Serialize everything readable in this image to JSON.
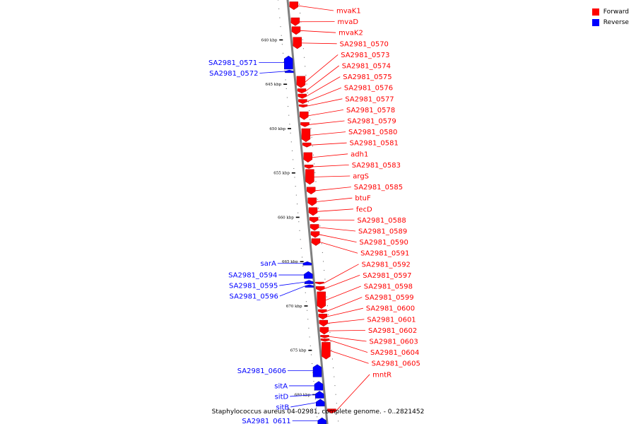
{
  "colors": {
    "forward": "#ff0000",
    "reverse": "#0000ff",
    "backbone": "#808080",
    "tick": "#000000"
  },
  "legend": {
    "forward_label": "Forward",
    "reverse_label": "Reverse"
  },
  "caption": "Staphylococcus aureus 04-02981, complete genome. - 0..2821452",
  "ticks": [
    {
      "kbp": 640,
      "label": "640 kbp"
    },
    {
      "kbp": 645,
      "label": "645 kbp"
    },
    {
      "kbp": 650,
      "label": "650 kbp"
    },
    {
      "kbp": 655,
      "label": "655 kbp"
    },
    {
      "kbp": 660,
      "label": "660 kbp"
    },
    {
      "kbp": 665,
      "label": "665 kbp"
    },
    {
      "kbp": 670,
      "label": "670 kbp"
    },
    {
      "kbp": 675,
      "label": "675 kbp"
    },
    {
      "kbp": 680,
      "label": "680 kbp"
    }
  ],
  "genes": [
    {
      "name": "mvaK1",
      "strand": "forward",
      "start": 635.7,
      "end": 636.6
    },
    {
      "name": "mvaD",
      "strand": "forward",
      "start": 637.5,
      "end": 638.4
    },
    {
      "name": "mvaK2",
      "strand": "forward",
      "start": 638.5,
      "end": 639.4
    },
    {
      "name": "SA2981_0570",
      "strand": "forward",
      "start": 639.7,
      "end": 641.0
    },
    {
      "name": "SA2981_0571",
      "strand": "reverse",
      "start": 641.8,
      "end": 643.3
    },
    {
      "name": "SA2981_0572",
      "strand": "reverse",
      "start": 643.4,
      "end": 643.7
    },
    {
      "name": "SA2981_0573",
      "strand": "forward",
      "start": 644.1,
      "end": 645.4
    },
    {
      "name": "SA2981_0574",
      "strand": "forward",
      "start": 645.5,
      "end": 646.0
    },
    {
      "name": "SA2981_0575",
      "strand": "forward",
      "start": 646.1,
      "end": 646.6
    },
    {
      "name": "SA2981_0576",
      "strand": "forward",
      "start": 646.7,
      "end": 647.2
    },
    {
      "name": "SA2981_0577",
      "strand": "forward",
      "start": 647.3,
      "end": 647.6
    },
    {
      "name": "SA2981_0578",
      "strand": "forward",
      "start": 648.1,
      "end": 649.0
    },
    {
      "name": "SA2981_0579",
      "strand": "forward",
      "start": 649.3,
      "end": 649.8
    },
    {
      "name": "SA2981_0580",
      "strand": "forward",
      "start": 650.0,
      "end": 651.5
    },
    {
      "name": "SA2981_0581",
      "strand": "forward",
      "start": 651.6,
      "end": 652.1
    },
    {
      "name": "adh1",
      "strand": "forward",
      "start": 652.7,
      "end": 653.8
    },
    {
      "name": "SA2981_0583",
      "strand": "forward",
      "start": 654.1,
      "end": 654.5
    },
    {
      "name": "argS",
      "strand": "forward",
      "start": 654.6,
      "end": 656.3
    },
    {
      "name": "SA2981_0585",
      "strand": "forward",
      "start": 656.6,
      "end": 657.4
    },
    {
      "name": "btuF",
      "strand": "forward",
      "start": 657.8,
      "end": 658.7
    },
    {
      "name": "fecD",
      "strand": "forward",
      "start": 658.9,
      "end": 659.8
    },
    {
      "name": "SA2981_0588",
      "strand": "forward",
      "start": 660.0,
      "end": 660.6
    },
    {
      "name": "SA2981_0589",
      "strand": "forward",
      "start": 660.8,
      "end": 661.5
    },
    {
      "name": "SA2981_0590",
      "strand": "forward",
      "start": 661.6,
      "end": 662.3
    },
    {
      "name": "SA2981_0591",
      "strand": "forward",
      "start": 662.4,
      "end": 663.2
    },
    {
      "name": "sarA",
      "strand": "reverse",
      "start": 665.0,
      "end": 665.4
    },
    {
      "name": "SA2981_0594",
      "strand": "reverse",
      "start": 666.1,
      "end": 666.9
    },
    {
      "name": "SA2981_0595",
      "strand": "reverse",
      "start": 667.1,
      "end": 667.5
    },
    {
      "name": "SA2981_0596",
      "strand": "reverse",
      "start": 667.6,
      "end": 667.9
    },
    {
      "name": "SA2981_0592",
      "strand": "forward",
      "start": 667.3,
      "end": 667.5
    },
    {
      "name": "SA2981_0597",
      "strand": "forward",
      "start": 667.8,
      "end": 668.3
    },
    {
      "name": "SA2981_0598",
      "strand": "forward",
      "start": 668.4,
      "end": 670.3
    },
    {
      "name": "SA2981_0599",
      "strand": "forward",
      "start": 670.4,
      "end": 670.8
    },
    {
      "name": "SA2981_0600",
      "strand": "forward",
      "start": 670.9,
      "end": 671.5
    },
    {
      "name": "SA2981_0601",
      "strand": "forward",
      "start": 671.6,
      "end": 672.3
    },
    {
      "name": "SA2981_0602",
      "strand": "forward",
      "start": 672.4,
      "end": 673.2
    },
    {
      "name": "SA2981_0603",
      "strand": "forward",
      "start": 673.3,
      "end": 673.6
    },
    {
      "name": "SA2981_0604",
      "strand": "forward",
      "start": 673.7,
      "end": 674.0
    },
    {
      "name": "SA2981_0605",
      "strand": "forward",
      "start": 674.1,
      "end": 676.0
    },
    {
      "name": "SA2981_0606",
      "strand": "reverse",
      "start": 676.6,
      "end": 678.0
    },
    {
      "name": "sitA",
      "strand": "reverse",
      "start": 678.5,
      "end": 679.5
    },
    {
      "name": "sitD",
      "strand": "reverse",
      "start": 679.6,
      "end": 680.4
    },
    {
      "name": "sitB",
      "strand": "reverse",
      "start": 680.5,
      "end": 681.3
    },
    {
      "name": "mntR",
      "strand": "forward",
      "start": 681.6,
      "end": 682.1
    },
    {
      "name": "SA2981_0611",
      "strand": "reverse",
      "start": 682.6,
      "end": 683.3
    }
  ]
}
